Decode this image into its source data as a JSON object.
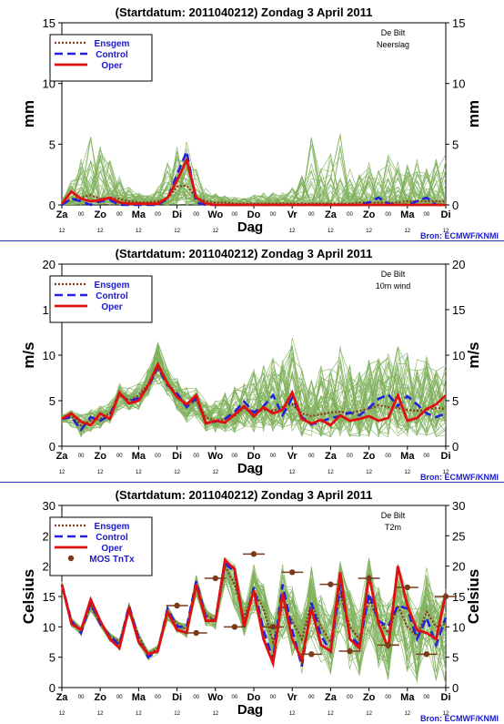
{
  "header": {
    "title": "(Startdatum: 2011040212)   Zondag     3 April     2011"
  },
  "colors": {
    "ensemble": "#7fb05a",
    "ensgem": "#8b3a1a",
    "control": "#2222dd",
    "oper": "#e01010",
    "mos": "#7a3b1a",
    "legend_text": "#1a1ad0",
    "separator": "#2233aa"
  },
  "x_axis": {
    "label": "Dag",
    "day_labels": [
      "Za",
      "Zo",
      "Ma",
      "Di",
      "Wo",
      "Do",
      "Vr",
      "Za",
      "Zo",
      "Ma",
      "Di"
    ],
    "hour_labels": [
      "12",
      "12",
      "12",
      "12",
      "12",
      "12",
      "12",
      "12",
      "12",
      "12",
      "12"
    ],
    "between_marker": "00"
  },
  "source": "Bron: ECMWF/KNMI",
  "legend": {
    "ensgem": "Ensgem",
    "control": "Control",
    "oper": "Oper",
    "mos": "MOS TnTx"
  },
  "chart_data": [
    {
      "type": "line",
      "title": "(Startdatum: 2011040212)   Zondag     3 April     2011",
      "location": "De Bilt",
      "variable": "Neerslag",
      "ylabel": "mm",
      "ylim": [
        0,
        15
      ],
      "yticks": [
        0,
        5,
        10,
        15
      ],
      "x": [
        0,
        6,
        12,
        18,
        24,
        30,
        36,
        42,
        48,
        54,
        60,
        66,
        72,
        78,
        84,
        90,
        96,
        102,
        108,
        114,
        120,
        126,
        132,
        138,
        144,
        150,
        156,
        162,
        168,
        174,
        180,
        186,
        192,
        198,
        204,
        210,
        216,
        222,
        228,
        234,
        240
      ],
      "series": [
        {
          "name": "Ensgem",
          "values": [
            0.1,
            0.5,
            0.6,
            0.8,
            0.5,
            0.6,
            0.5,
            0.3,
            0.2,
            0.2,
            0.3,
            0.5,
            1.5,
            1.6,
            0.6,
            0.3,
            0.2,
            0.2,
            0.1,
            0.1,
            0.1,
            0.1,
            0.1,
            0.1,
            0.1,
            0.1,
            0.1,
            0.1,
            0.1,
            0.1,
            0.1,
            0.2,
            0.2,
            0.2,
            0.2,
            0.2,
            0.3,
            0.3,
            0.3,
            0.3,
            0.3
          ]
        },
        {
          "name": "Control",
          "values": [
            0.0,
            0.5,
            0.3,
            0.0,
            0.3,
            0.4,
            0.0,
            0.0,
            0.0,
            0.0,
            0.0,
            0.5,
            2.5,
            4.4,
            0.2,
            0.0,
            0.0,
            0.0,
            0.0,
            0.0,
            0.0,
            0.0,
            0.0,
            0.0,
            0.0,
            0.0,
            0.0,
            0.0,
            0.0,
            0.0,
            0.0,
            0.0,
            0.2,
            0.6,
            0.1,
            0.0,
            0.0,
            0.3,
            0.6,
            0.0,
            0.0
          ]
        },
        {
          "name": "Oper",
          "values": [
            0.1,
            1.1,
            0.5,
            0.3,
            0.4,
            0.6,
            0.2,
            0.1,
            0.1,
            0.1,
            0.1,
            0.6,
            2.0,
            3.7,
            0.6,
            0.1,
            0.0,
            0.0,
            0.0,
            0.0,
            0.0,
            0.0,
            0.0,
            0.0,
            0.0,
            0.0,
            0.0,
            0.0,
            0.0,
            0.0,
            0.0,
            0.0,
            0.0,
            0.0,
            0.0,
            0.0,
            0.0,
            0.0,
            0.0,
            0.0,
            0.0
          ]
        }
      ],
      "ensemble_members": 50,
      "ensemble_envelope_max": [
        0.5,
        2.0,
        4.0,
        7.0,
        5.0,
        4.0,
        2.5,
        1.5,
        1.0,
        0.8,
        1.5,
        3.5,
        5.0,
        5.5,
        3.0,
        1.5,
        1.0,
        0.8,
        0.6,
        0.6,
        0.8,
        1.0,
        1.0,
        1.2,
        1.5,
        2.5,
        6.5,
        3.0,
        4.5,
        6.5,
        3.0,
        2.5,
        3.5,
        3.0,
        4.5,
        4.0,
        3.5,
        4.0,
        3.5,
        4.0,
        4.5
      ]
    },
    {
      "type": "line",
      "title": "(Startdatum: 2011040212)   Zondag     3 April     2011",
      "location": "De Bilt",
      "variable": "10m wind",
      "ylabel": "m/s",
      "ylim": [
        0,
        20
      ],
      "yticks": [
        0,
        5,
        10,
        15,
        20
      ],
      "x": [
        0,
        6,
        12,
        18,
        24,
        30,
        36,
        42,
        48,
        54,
        60,
        66,
        72,
        78,
        84,
        90,
        96,
        102,
        108,
        114,
        120,
        126,
        132,
        138,
        144,
        150,
        156,
        162,
        168,
        174,
        180,
        186,
        192,
        198,
        204,
        210,
        216,
        222,
        228,
        234,
        240
      ],
      "series": [
        {
          "name": "Ensgem",
          "values": [
            3.0,
            3.3,
            2.3,
            2.8,
            3.0,
            3.6,
            5.6,
            5.0,
            5.6,
            6.8,
            8.5,
            7.0,
            5.5,
            4.5,
            5.0,
            3.2,
            2.8,
            3.0,
            3.3,
            4.2,
            3.8,
            4.0,
            3.9,
            4.3,
            4.6,
            3.6,
            3.3,
            3.5,
            3.7,
            3.8,
            3.6,
            3.9,
            4.1,
            4.5,
            4.3,
            4.2,
            4.0,
            3.9,
            4.0,
            4.2,
            4.1
          ]
        },
        {
          "name": "Control",
          "values": [
            3.0,
            3.2,
            1.8,
            3.2,
            2.8,
            3.4,
            5.8,
            4.9,
            5.3,
            6.5,
            8.7,
            6.7,
            5.8,
            4.3,
            5.3,
            2.6,
            2.7,
            3.0,
            3.8,
            4.9,
            3.7,
            4.4,
            5.6,
            3.4,
            5.3,
            3.2,
            2.4,
            2.7,
            3.1,
            3.3,
            3.7,
            3.4,
            4.2,
            5.2,
            5.7,
            4.4,
            5.5,
            4.6,
            3.6,
            3.2,
            3.6
          ]
        },
        {
          "name": "Oper",
          "values": [
            3.0,
            3.6,
            2.7,
            2.3,
            3.6,
            3.0,
            5.9,
            4.7,
            5.0,
            6.7,
            9.0,
            6.9,
            5.4,
            4.6,
            5.6,
            2.5,
            2.8,
            2.6,
            3.5,
            4.4,
            3.3,
            4.3,
            3.6,
            4.0,
            5.9,
            3.0,
            2.5,
            2.9,
            2.3,
            3.4,
            2.8,
            3.0,
            3.3,
            2.8,
            3.1,
            5.6,
            2.8,
            3.1,
            4.1,
            4.6,
            5.6
          ]
        }
      ],
      "ensemble_members": 50,
      "ensemble_envelope_min": [
        2.5,
        2.0,
        1.0,
        1.5,
        2.0,
        2.5,
        4.0,
        4.0,
        4.0,
        5.5,
        6.5,
        5.5,
        4.0,
        2.5,
        3.0,
        1.5,
        1.5,
        1.5,
        1.5,
        2.0,
        1.5,
        1.5,
        1.5,
        1.5,
        1.5,
        1.0,
        1.0,
        1.0,
        1.0,
        1.0,
        1.0,
        1.0,
        1.0,
        1.0,
        1.0,
        1.0,
        1.0,
        1.0,
        1.0,
        1.0,
        1.0
      ],
      "ensemble_envelope_max": [
        3.5,
        4.0,
        3.5,
        4.0,
        4.5,
        5.0,
        7.0,
        6.5,
        7.0,
        8.5,
        11.5,
        8.5,
        7.5,
        6.5,
        7.0,
        5.0,
        5.0,
        6.0,
        6.5,
        7.0,
        8.5,
        9.0,
        10.0,
        9.5,
        12.0,
        9.0,
        7.5,
        9.0,
        8.5,
        11.0,
        9.0,
        8.5,
        9.5,
        10.0,
        10.5,
        11.5,
        10.5,
        9.5,
        10.0,
        8.5,
        9.0
      ]
    },
    {
      "type": "line",
      "title": "(Startdatum: 2011040212)   Zondag     3 April     2011",
      "location": "De Bilt",
      "variable": "T2m",
      "ylabel": "Celsius",
      "ylim": [
        0,
        30
      ],
      "yticks": [
        0,
        5,
        10,
        15,
        20,
        25,
        30
      ],
      "x": [
        0,
        6,
        12,
        18,
        24,
        30,
        36,
        42,
        48,
        54,
        60,
        66,
        72,
        78,
        84,
        90,
        96,
        102,
        108,
        114,
        120,
        126,
        132,
        138,
        144,
        150,
        156,
        162,
        168,
        174,
        180,
        186,
        192,
        198,
        204,
        210,
        216,
        222,
        228,
        234,
        240
      ],
      "series": [
        {
          "name": "Ensgem",
          "values": [
            17.0,
            11.0,
            9.5,
            13.5,
            10.5,
            8.5,
            7.5,
            13.0,
            8.5,
            5.5,
            6.5,
            12.5,
            10.5,
            9.5,
            17.0,
            12.0,
            11.0,
            20.0,
            17.0,
            11.5,
            16.0,
            13.0,
            7.5,
            13.5,
            11.0,
            8.0,
            14.0,
            10.0,
            7.5,
            15.5,
            10.0,
            8.0,
            14.5,
            11.0,
            9.0,
            13.5,
            10.0,
            8.5,
            12.5,
            10.0,
            10.5
          ]
        },
        {
          "name": "Control",
          "values": [
            17.0,
            11.0,
            9.0,
            14.0,
            10.5,
            8.5,
            7.0,
            13.5,
            8.0,
            5.0,
            6.0,
            13.0,
            10.0,
            10.0,
            17.5,
            11.5,
            11.0,
            20.5,
            19.0,
            10.0,
            16.5,
            9.5,
            4.5,
            17.0,
            9.5,
            3.5,
            14.0,
            8.5,
            6.0,
            17.0,
            8.5,
            7.0,
            15.5,
            11.0,
            10.0,
            13.5,
            13.0,
            8.0,
            11.5,
            7.0,
            11.5
          ]
        },
        {
          "name": "Oper",
          "values": [
            17.0,
            10.5,
            9.5,
            14.5,
            11.0,
            8.0,
            6.5,
            13.0,
            7.5,
            5.5,
            6.0,
            12.5,
            9.5,
            9.0,
            17.0,
            11.0,
            11.0,
            21.0,
            19.5,
            10.0,
            16.0,
            8.0,
            4.0,
            15.5,
            8.0,
            4.5,
            13.0,
            7.0,
            6.0,
            19.0,
            8.0,
            6.5,
            18.5,
            10.5,
            6.5,
            20.0,
            13.5,
            9.5,
            9.0,
            8.0,
            15.5
          ]
        }
      ],
      "mos_tntx": [
        {
          "x": 72,
          "value": 13.5
        },
        {
          "x": 84,
          "value": 9.0
        },
        {
          "x": 96,
          "value": 18.0
        },
        {
          "x": 108,
          "value": 10.0
        },
        {
          "x": 120,
          "value": 22.0
        },
        {
          "x": 132,
          "value": 10.0
        },
        {
          "x": 144,
          "value": 19.0
        },
        {
          "x": 156,
          "value": 5.5
        },
        {
          "x": 168,
          "value": 17.0
        },
        {
          "x": 180,
          "value": 6.0
        },
        {
          "x": 192,
          "value": 18.0
        },
        {
          "x": 204,
          "value": 7.0
        },
        {
          "x": 216,
          "value": 16.5
        },
        {
          "x": 228,
          "value": 5.5
        },
        {
          "x": 240,
          "value": 15.0
        }
      ],
      "ensemble_members": 50,
      "ensemble_envelope_min": [
        16.5,
        10.0,
        8.5,
        12.5,
        10.0,
        7.5,
        6.0,
        12.0,
        7.0,
        4.5,
        5.5,
        11.0,
        9.0,
        8.0,
        15.0,
        10.0,
        9.5,
        17.0,
        13.0,
        8.5,
        12.0,
        7.0,
        3.0,
        8.0,
        5.0,
        2.0,
        8.0,
        3.5,
        2.0,
        8.0,
        3.0,
        1.5,
        8.0,
        3.0,
        1.0,
        7.0,
        2.5,
        0.5,
        6.0,
        1.0,
        0.0
      ],
      "ensemble_envelope_max": [
        17.5,
        11.5,
        10.0,
        14.5,
        11.0,
        9.0,
        8.0,
        14.0,
        9.0,
        6.0,
        7.0,
        13.5,
        11.0,
        10.5,
        18.5,
        13.0,
        12.0,
        21.5,
        20.5,
        14.0,
        20.5,
        17.0,
        12.0,
        21.0,
        17.0,
        12.0,
        20.0,
        15.5,
        12.0,
        21.0,
        16.0,
        12.5,
        22.0,
        17.0,
        14.0,
        21.0,
        16.0,
        13.0,
        20.0,
        15.0,
        17.0
      ]
    }
  ]
}
